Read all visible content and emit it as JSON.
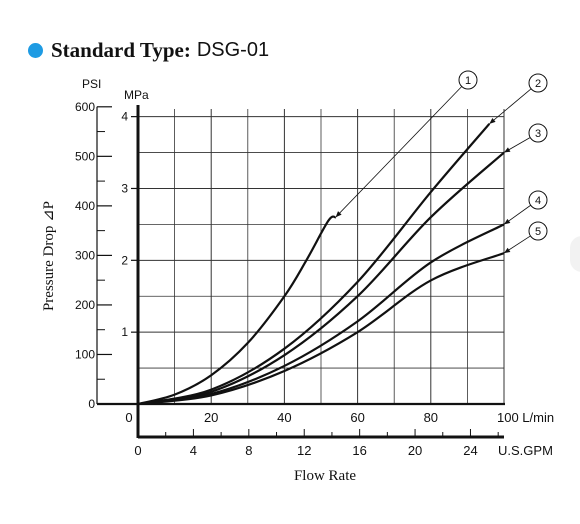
{
  "header": {
    "title_bold": "Standard Type:",
    "title_model": "DSG-01",
    "accent_color": "#1e9be3"
  },
  "chart_data": {
    "type": "line",
    "title": "Standard Type: DSG-01",
    "xlabel": "Flow Rate",
    "ylabel": "Pressure Drop ⊿P",
    "x_unit": "L/min",
    "x2_unit": "U.S.GPM",
    "y_unit_left": "PSI",
    "y_unit_right": "MPa",
    "xlim": [
      0,
      100
    ],
    "ylim_psi": [
      0,
      600
    ],
    "x_ticks": [
      "0",
      "20",
      "40",
      "60",
      "80",
      "100"
    ],
    "x2_ticks": [
      "0",
      "4",
      "8",
      "12",
      "16",
      "20",
      "24"
    ],
    "y_ticks_psi": [
      "0",
      "100",
      "200",
      "300",
      "400",
      "500",
      "600"
    ],
    "y_ticks_mpa": [
      "1",
      "2",
      "3",
      "4"
    ],
    "grid": true,
    "series": [
      {
        "name": "1",
        "x": [
          0,
          10,
          20,
          30,
          40,
          46,
          52,
          54
        ],
        "y": [
          0,
          0.13,
          0.4,
          0.85,
          1.5,
          2.0,
          2.55,
          2.6
        ]
      },
      {
        "name": "2",
        "x": [
          0,
          20,
          40,
          60,
          80,
          96
        ],
        "y": [
          0,
          0.2,
          0.77,
          1.7,
          2.95,
          3.9
        ]
      },
      {
        "name": "3",
        "x": [
          0,
          20,
          40,
          60,
          80,
          100
        ],
        "y": [
          0,
          0.17,
          0.68,
          1.5,
          2.6,
          3.5
        ]
      },
      {
        "name": "4",
        "x": [
          0,
          20,
          40,
          60,
          80,
          100
        ],
        "y": [
          0,
          0.14,
          0.53,
          1.15,
          1.97,
          2.5
        ]
      },
      {
        "name": "5",
        "x": [
          0,
          20,
          40,
          60,
          80,
          100
        ],
        "y": [
          0,
          0.12,
          0.46,
          1.0,
          1.72,
          2.1
        ]
      }
    ]
  }
}
